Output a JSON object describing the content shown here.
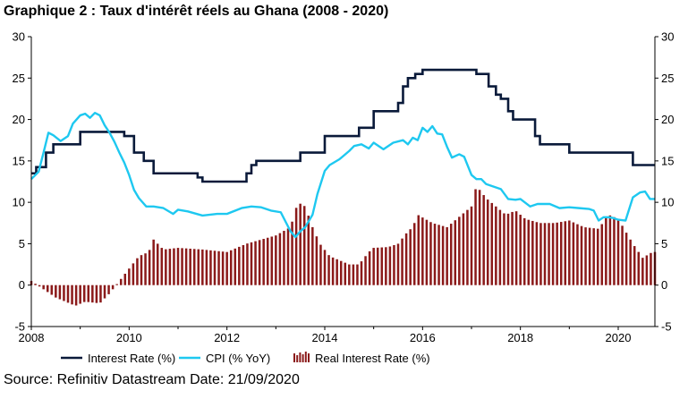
{
  "title": "Graphique 2 : Taux d'intérêt réels au Ghana (2008 - 2020)",
  "source": "Source: Refinitiv Datastream Date: 21/09/2020",
  "chart_data": {
    "type": "line",
    "x_ticks": [
      "2008",
      "2010",
      "2012",
      "2014",
      "2016",
      "2018",
      "2020"
    ],
    "y_ticks": [
      "30",
      "25",
      "20",
      "15",
      "10",
      "5",
      "0",
      "-5"
    ],
    "xlim": [
      2008.0,
      2020.75
    ],
    "ylim": [
      -5,
      30
    ],
    "grid": false,
    "legend_position": "bottom",
    "colors": {
      "interest_rate": "#0a1a3a",
      "cpi": "#1ec8f0",
      "real_rate": "#8b1a1a"
    },
    "series": [
      {
        "name": "Interest Rate (%)",
        "type": "step",
        "x": [
          2008.0,
          2008.1,
          2008.2,
          2008.3,
          2008.45,
          2009.0,
          2009.9,
          2010.1,
          2010.3,
          2010.5,
          2011.4,
          2011.5,
          2012.4,
          2012.5,
          2012.6,
          2013.3,
          2013.5,
          2013.75,
          2014.0,
          2014.3,
          2014.7,
          2015.0,
          2015.3,
          2015.5,
          2015.6,
          2015.7,
          2015.85,
          2016.0,
          2016.8,
          2017.1,
          2017.2,
          2017.35,
          2017.5,
          2017.6,
          2017.75,
          2017.85,
          2018.3,
          2018.4,
          2018.5,
          2019.0,
          2019.5,
          2020.3,
          2020.75
        ],
        "y": [
          13.5,
          14.25,
          14.25,
          16,
          17,
          18.5,
          18,
          16,
          15,
          13.5,
          13,
          12.5,
          13.5,
          14.5,
          15,
          15,
          16,
          16,
          18,
          18,
          19,
          21,
          21,
          22,
          24,
          25,
          25.5,
          26,
          26,
          25.5,
          25.5,
          24,
          23,
          22.5,
          21,
          20,
          18,
          17,
          17,
          16,
          16,
          14.5,
          14.5
        ]
      },
      {
        "name": "CPI (% YoY)",
        "type": "line",
        "x": [
          2008.0,
          2008.15,
          2008.25,
          2008.35,
          2008.45,
          2008.6,
          2008.75,
          2008.85,
          2009.0,
          2009.1,
          2009.2,
          2009.3,
          2009.4,
          2009.5,
          2009.6,
          2009.7,
          2009.8,
          2009.9,
          2010.0,
          2010.1,
          2010.2,
          2010.35,
          2010.5,
          2010.7,
          2010.9,
          2011.0,
          2011.2,
          2011.5,
          2011.8,
          2012.0,
          2012.3,
          2012.5,
          2012.7,
          2012.9,
          2013.1,
          2013.3,
          2013.4,
          2013.5,
          2013.6,
          2013.7,
          2013.75,
          2013.85,
          2014.0,
          2014.1,
          2014.3,
          2014.5,
          2014.6,
          2014.75,
          2014.9,
          2015.0,
          2015.2,
          2015.4,
          2015.6,
          2015.7,
          2015.8,
          2015.9,
          2016.0,
          2016.1,
          2016.2,
          2016.3,
          2016.4,
          2016.5,
          2016.6,
          2016.75,
          2016.85,
          2017.0,
          2017.1,
          2017.2,
          2017.3,
          2017.5,
          2017.6,
          2017.75,
          2017.9,
          2018.0,
          2018.2,
          2018.35,
          2018.6,
          2018.8,
          2019.0,
          2019.2,
          2019.4,
          2019.5,
          2019.6,
          2019.7,
          2019.8,
          2019.9,
          2020.0,
          2020.15,
          2020.3,
          2020.45,
          2020.55,
          2020.65,
          2020.75
        ],
        "y": [
          12.8,
          13.7,
          16,
          18.4,
          18.1,
          17.4,
          18,
          19.5,
          20.5,
          20.7,
          20.2,
          20.8,
          20.5,
          19.3,
          18.4,
          17.3,
          16,
          14.8,
          13.3,
          11.5,
          10.5,
          9.5,
          9.5,
          9.3,
          8.6,
          9.1,
          8.9,
          8.4,
          8.6,
          8.6,
          9.3,
          9.5,
          9.4,
          9.0,
          8.8,
          6.5,
          5.8,
          6.5,
          7.0,
          8.0,
          8.5,
          11.0,
          13.8,
          14.5,
          15.2,
          16.2,
          16.8,
          17.0,
          16.5,
          17.2,
          16.4,
          17.2,
          17.5,
          17.0,
          17.8,
          17.5,
          19.0,
          18.5,
          19.2,
          18.3,
          18.2,
          16.7,
          15.4,
          15.8,
          15.5,
          13.3,
          12.8,
          12.8,
          12.2,
          11.8,
          11.6,
          10.4,
          10.3,
          10.4,
          9.5,
          9.8,
          9.8,
          9.3,
          9.4,
          9.3,
          9.2,
          9.0,
          7.8,
          8.2,
          8.2,
          8.1,
          7.9,
          7.8,
          10.6,
          11.2,
          11.3,
          10.4,
          10.4
        ]
      },
      {
        "name": "Real Interest Rate (%)",
        "type": "bar",
        "x": [
          2008.0,
          2008.5,
          2008.9,
          2009.1,
          2009.4,
          2009.6,
          2009.8,
          2010.0,
          2010.2,
          2010.4,
          2010.5,
          2010.7,
          2011.0,
          2011.5,
          2012.0,
          2012.4,
          2012.7,
          2013.0,
          2013.3,
          2013.45,
          2013.6,
          2013.75,
          2013.9,
          2014.1,
          2014.3,
          2014.5,
          2014.7,
          2014.9,
          2015.0,
          2015.3,
          2015.5,
          2015.7,
          2015.8,
          2015.9,
          2016.2,
          2016.5,
          2016.8,
          2017.0,
          2017.1,
          2017.3,
          2017.5,
          2017.7,
          2017.9,
          2018.1,
          2018.4,
          2018.7,
          2019.0,
          2019.3,
          2019.6,
          2019.8,
          2020.0,
          2020.3,
          2020.5,
          2020.7
        ],
        "y": [
          0.5,
          -1.5,
          -2.5,
          -2.0,
          -2.2,
          -1.0,
          0.5,
          2.0,
          3.5,
          4.0,
          5.5,
          4.3,
          4.5,
          4.3,
          4.0,
          5.0,
          5.5,
          6.0,
          7.0,
          10.0,
          9.5,
          7.0,
          5.0,
          3.5,
          3.0,
          2.5,
          2.5,
          4.0,
          4.5,
          4.6,
          5.0,
          6.5,
          7.0,
          8.5,
          7.5,
          7.0,
          8.5,
          9.5,
          12.0,
          10.5,
          9.5,
          8.5,
          9.0,
          8.0,
          7.5,
          7.5,
          7.8,
          7.0,
          6.8,
          8.5,
          8.0,
          5.0,
          3.3,
          4.0
        ]
      }
    ]
  }
}
